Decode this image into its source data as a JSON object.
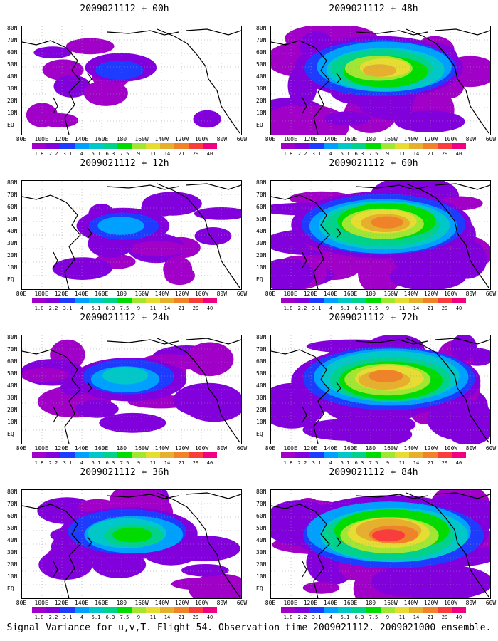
{
  "panels": [
    {
      "title": "2009021112 + 00h",
      "intensity": 0.15
    },
    {
      "title": "2009021112 + 12h",
      "intensity": 0.3
    },
    {
      "title": "2009021112 + 24h",
      "intensity": 0.45
    },
    {
      "title": "2009021112 + 36h",
      "intensity": 0.6
    },
    {
      "title": "2009021112 + 48h",
      "intensity": 0.8
    },
    {
      "title": "2009021112 + 60h",
      "intensity": 0.88
    },
    {
      "title": "2009021112 + 72h",
      "intensity": 0.95
    },
    {
      "title": "2009021112 + 84h",
      "intensity": 1.0
    }
  ],
  "lat_labels": [
    "80N",
    "70N",
    "60N",
    "50N",
    "40N",
    "30N",
    "20N",
    "10N",
    "EQ"
  ],
  "lon_labels": [
    "80E",
    "100E",
    "120E",
    "140E",
    "160E",
    "180",
    "160W",
    "140W",
    "120W",
    "100W",
    "80W",
    "60W"
  ],
  "colorbar": {
    "labels": [
      "1.8",
      "2.2",
      "3.1",
      "4",
      "5.1",
      "6.3",
      "7.5",
      "9",
      "11",
      "14",
      "21",
      "29",
      "40"
    ],
    "colors": [
      "#a000c8",
      "#8200dc",
      "#1e3cff",
      "#00a0ff",
      "#00c8c8",
      "#00d28c",
      "#00dc00",
      "#a0e632",
      "#e6dc32",
      "#e6af2d",
      "#f08228",
      "#fa3c3c",
      "#f00082"
    ]
  },
  "caption": "Signal Variance for u,v,T. Flight 54. Observation time 2009021112. 2009021000 ensemble."
}
